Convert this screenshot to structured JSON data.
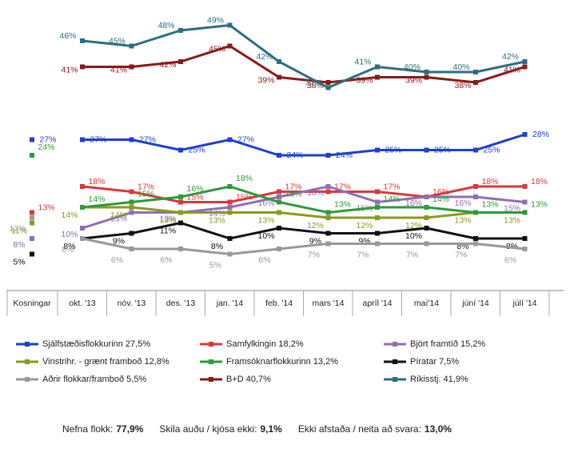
{
  "chart_data": {
    "type": "line",
    "categories": [
      "Kosningar",
      "okt. '13",
      "nóv. '13",
      "des. '13",
      "jan. '14",
      "feb. '14",
      "mars '14",
      "apríl '14",
      "maí'14",
      "júní '14",
      "júlí '14"
    ],
    "ylim": [
      0,
      52
    ],
    "series": [
      {
        "name": "Sjálfstæðisflokkurinn 27,5%",
        "color": "#1f3fd0",
        "values": [
          27,
          27,
          27,
          25,
          27,
          24,
          24,
          25,
          25,
          25,
          28
        ],
        "value_labels": [
          "27%",
          "27%",
          "27%",
          "25%",
          "27%",
          "24%",
          "24%",
          "25%",
          "25%",
          "25%",
          "28%"
        ]
      },
      {
        "name": "Samfylkingin 18,2%",
        "color": "#d9383a",
        "values": [
          13,
          18,
          17,
          15,
          15,
          17,
          17,
          17,
          16,
          18,
          18
        ],
        "value_labels": [
          "13%",
          "18%",
          "17%",
          "15%",
          "15%",
          "17%",
          "17%",
          "17%",
          "16%",
          "18%",
          "18%"
        ]
      },
      {
        "name": "Björt framtíð 15,2%",
        "color": "#8e6fb5",
        "values": [
          8,
          10,
          13,
          13,
          14,
          16,
          18,
          15,
          16,
          16,
          15
        ],
        "value_labels": [
          "8%",
          "10%",
          "13%",
          "13%",
          "14%",
          "16%",
          "18%",
          "15%",
          "16%",
          "16%",
          "15%"
        ]
      },
      {
        "name": "Vinstrihr. - grænt framboð 12,8%",
        "color": "#8a9a1f",
        "values": [
          11,
          14,
          14,
          13,
          13,
          13,
          12,
          12,
          12,
          13,
          13
        ],
        "value_labels": [
          "11%",
          "14%",
          "14%",
          "13%",
          "13%",
          "13%",
          "12%",
          "12%",
          "12%",
          "13%",
          "13%"
        ]
      },
      {
        "name": "Framsóknarflokkurinn 13,2%",
        "color": "#2e9a3a",
        "values": [
          24,
          14,
          15,
          16,
          18,
          15,
          13,
          14,
          14,
          13,
          13
        ],
        "value_labels": [
          "24%",
          "14%",
          "15%",
          "16%",
          "18%",
          "15%",
          "13%",
          "14%",
          "14%",
          "13%",
          "13%"
        ]
      },
      {
        "name": "Píratar 7,5%",
        "color": "#111111",
        "values": [
          5,
          8,
          9,
          11,
          8,
          10,
          9,
          9,
          10,
          8,
          8
        ],
        "value_labels": [
          "5%",
          "8%",
          "9%",
          "11%",
          "8%",
          "10%",
          "9%",
          "9%",
          "10%",
          "8%",
          "8%"
        ]
      },
      {
        "name": "Aðrir flokkar/framboð 5,5%",
        "color": "#999999",
        "values": [
          12,
          8,
          6,
          6,
          5,
          6,
          7,
          7,
          7,
          7,
          6
        ],
        "value_labels": [
          "12%",
          "8%",
          "6%",
          "6%",
          "5%",
          "6%",
          "7%",
          "7%",
          "7%",
          "7%",
          "6%"
        ]
      },
      {
        "name": "B+D 40,7%",
        "color": "#8b1a1a",
        "values": [
          null,
          41,
          41,
          42,
          45,
          39,
          38,
          39,
          39,
          38,
          41
        ],
        "value_labels": [
          null,
          "41%",
          "41%",
          "42%",
          "45%",
          "39%",
          "38%",
          "39%",
          "39%",
          "38%",
          "41%"
        ]
      },
      {
        "name": "Ríkisstj. 41,9%",
        "color": "#2e6e7e",
        "values": [
          null,
          46,
          45,
          48,
          49,
          42,
          37,
          41,
          40,
          40,
          42
        ],
        "value_labels": [
          null,
          "46%",
          "45%",
          "48%",
          "49%",
          "42%",
          "37%",
          "41%",
          "40%",
          "40%",
          "42%"
        ]
      }
    ]
  },
  "footer": [
    {
      "label": "Nefna flokk:",
      "value": "77,9%"
    },
    {
      "label": "Skila auðu / kjósa ekki:",
      "value": "9,1%"
    },
    {
      "label": "Ekki afstaða / neita að svara:",
      "value": "13,0%"
    }
  ]
}
